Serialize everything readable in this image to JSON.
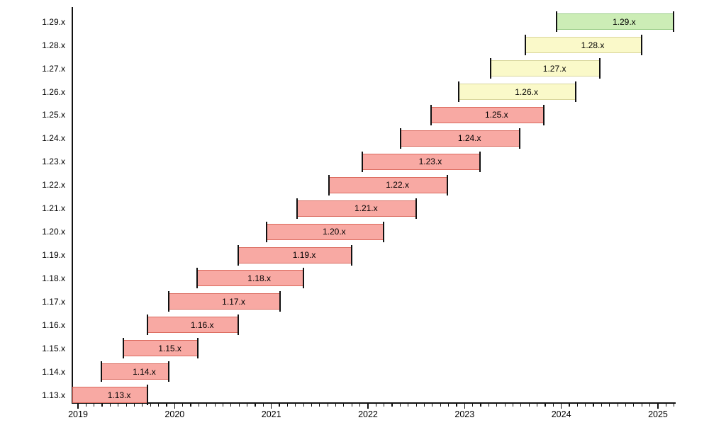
{
  "chart_data": {
    "type": "gantt",
    "x_axis": {
      "tick_labels": [
        "2019",
        "2020",
        "2021",
        "2022",
        "2023",
        "2024",
        "2025"
      ],
      "range_years": [
        2018.94,
        2025.18
      ],
      "minor_ticks": "monthly",
      "grid": false
    },
    "rows": [
      {
        "label": "1.29.x",
        "start": 2023.95,
        "end": 2025.16,
        "status": "latest"
      },
      {
        "label": "1.28.x",
        "start": 2023.63,
        "end": 2024.83,
        "status": "maintained"
      },
      {
        "label": "1.27.x",
        "start": 2023.27,
        "end": 2024.4,
        "status": "maintained"
      },
      {
        "label": "1.26.x",
        "start": 2022.94,
        "end": 2024.15,
        "status": "maintained"
      },
      {
        "label": "1.25.x",
        "start": 2022.65,
        "end": 2023.82,
        "status": "eol"
      },
      {
        "label": "1.24.x",
        "start": 2022.34,
        "end": 2023.57,
        "status": "eol"
      },
      {
        "label": "1.23.x",
        "start": 2021.94,
        "end": 2023.16,
        "status": "eol"
      },
      {
        "label": "1.22.x",
        "start": 2021.6,
        "end": 2022.82,
        "status": "eol"
      },
      {
        "label": "1.21.x",
        "start": 2021.27,
        "end": 2022.5,
        "status": "eol"
      },
      {
        "label": "1.20.x",
        "start": 2020.95,
        "end": 2022.16,
        "status": "eol"
      },
      {
        "label": "1.19.x",
        "start": 2020.66,
        "end": 2021.83,
        "status": "eol"
      },
      {
        "label": "1.18.x",
        "start": 2020.23,
        "end": 2021.33,
        "status": "eol"
      },
      {
        "label": "1.17.x",
        "start": 2019.94,
        "end": 2021.09,
        "status": "eol"
      },
      {
        "label": "1.16.x",
        "start": 2019.72,
        "end": 2020.66,
        "status": "eol"
      },
      {
        "label": "1.15.x",
        "start": 2019.47,
        "end": 2020.24,
        "status": "eol"
      },
      {
        "label": "1.14.x",
        "start": 2019.24,
        "end": 2019.94,
        "status": "eol"
      },
      {
        "label": "1.13.x",
        "start": 2018.94,
        "end": 2019.72,
        "status": "eol",
        "clipped_start": true
      }
    ],
    "status_colors": {
      "eol": {
        "fill": "#F8A9A3",
        "border": "#DB6A5E"
      },
      "maintained": {
        "fill": "#FAF9C9",
        "border": "#D9D69C"
      },
      "latest": {
        "fill": "#CCEDB6",
        "border": "#95CB81"
      }
    },
    "axis_color": "#111111",
    "text_color": "#000000"
  }
}
